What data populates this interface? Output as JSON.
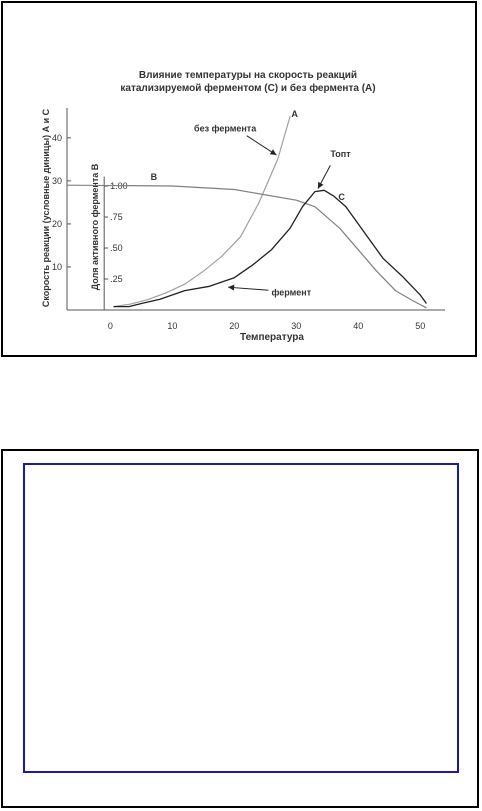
{
  "chart_data": {
    "type": "line",
    "title_lines": [
      "Влияние температуры на скорость реакций",
      "катализируемой ферментом (С) и без фермента (А)"
    ],
    "xlabel": "Температура",
    "ylabel_left": "Скорость реакции (условные диницы) А и С",
    "ylabel_inner": "Доля активного фермента В",
    "xlim": [
      -7,
      54
    ],
    "ylim": [
      0,
      46
    ],
    "x_ticks": [
      0,
      10,
      20,
      30,
      40,
      50
    ],
    "y_ticks": [
      10,
      20,
      30,
      40
    ],
    "fraction_ticks": [
      {
        "label": ".25",
        "y": 7.2
      },
      {
        "label": ".50",
        "y": 14.4
      },
      {
        "label": ".75",
        "y": 21.6
      },
      {
        "label": "1.00",
        "y": 28.8
      }
    ],
    "grid": false,
    "series": [
      {
        "name": "А",
        "color": "#a0a0a0",
        "x": [
          0.5,
          3,
          6,
          9,
          12,
          15,
          18,
          21,
          24,
          27,
          29
        ],
        "y": [
          0.8,
          1.3,
          2.4,
          4,
          6,
          9,
          12.5,
          17,
          25,
          35,
          45
        ]
      },
      {
        "name": "В",
        "color": "#808080",
        "x": [
          -7,
          10,
          20,
          30,
          33,
          37,
          40,
          43,
          46,
          49,
          51
        ],
        "y": [
          29,
          28.8,
          28,
          25.5,
          24,
          19,
          14,
          9,
          4.5,
          2,
          0.5
        ]
      },
      {
        "name": "С",
        "color": "#202020",
        "x": [
          0.5,
          3,
          5,
          8,
          12,
          16,
          20,
          23,
          26,
          29,
          31,
          33,
          34.5,
          36,
          38,
          41,
          44,
          47,
          50,
          51
        ],
        "y": [
          0.8,
          0.8,
          1.5,
          2.5,
          4.5,
          5.5,
          7.5,
          10.5,
          14,
          19,
          24,
          27.5,
          27.8,
          26.5,
          24,
          18,
          12,
          8,
          3.5,
          1.5
        ]
      }
    ],
    "annotations": [
      {
        "text": "без фермента",
        "x": 13.5,
        "y": 41.5
      },
      {
        "text": "А",
        "x": 29.2,
        "y": 44.8
      },
      {
        "text": "Топт",
        "x": 35.5,
        "y": 35.5
      },
      {
        "text": "С",
        "x": 36.8,
        "y": 25.5
      },
      {
        "text": "В",
        "x": 6.5,
        "y": 30.2
      },
      {
        "text": "фермент",
        "x": 26,
        "y": 3.4
      }
    ]
  }
}
